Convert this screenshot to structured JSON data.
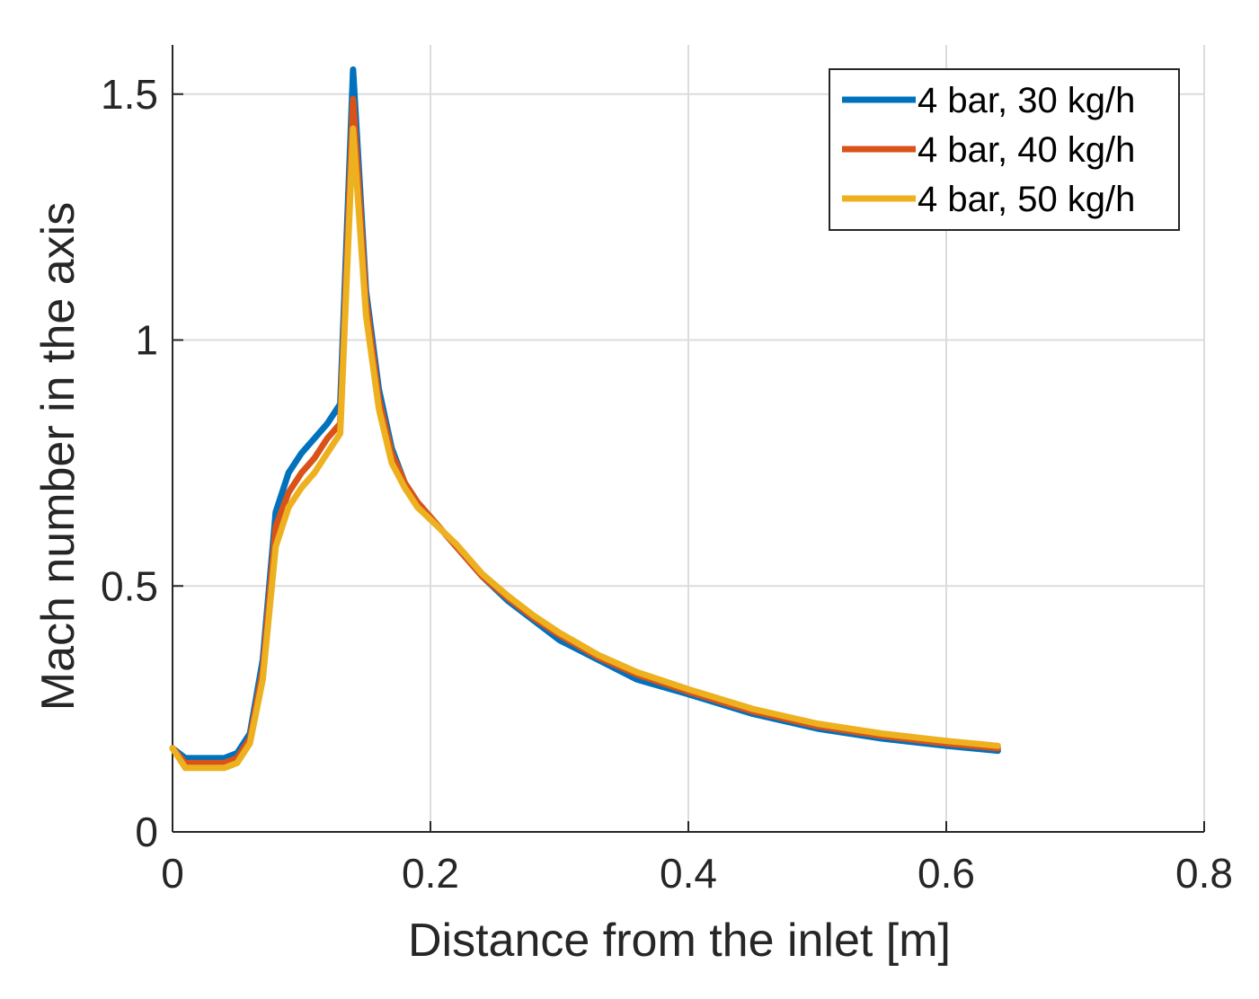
{
  "chart_data": {
    "type": "line",
    "title": "",
    "xlabel": "Distance from the inlet [m]",
    "ylabel": "Mach number in the axis",
    "xlim": [
      0,
      0.8
    ],
    "ylim": [
      0,
      1.6
    ],
    "xticks": [
      0,
      0.2,
      0.4,
      0.6,
      0.8
    ],
    "xtick_labels": [
      "0",
      "0.2",
      "0.4",
      "0.6",
      "0.8"
    ],
    "yticks": [
      0,
      0.5,
      1,
      1.5
    ],
    "ytick_labels": [
      "0",
      "0.5",
      "1",
      "1.5"
    ],
    "grid": true,
    "legend_position": "top-right",
    "series": [
      {
        "name": "4 bar, 30 kg/h",
        "color": "#0072BD",
        "points": [
          [
            0,
            0.17
          ],
          [
            0.01,
            0.15
          ],
          [
            0.02,
            0.15
          ],
          [
            0.03,
            0.15
          ],
          [
            0.04,
            0.15
          ],
          [
            0.05,
            0.16
          ],
          [
            0.06,
            0.2
          ],
          [
            0.07,
            0.35
          ],
          [
            0.08,
            0.65
          ],
          [
            0.09,
            0.73
          ],
          [
            0.1,
            0.77
          ],
          [
            0.11,
            0.8
          ],
          [
            0.12,
            0.83
          ],
          [
            0.13,
            0.87
          ],
          [
            0.14,
            1.55
          ],
          [
            0.15,
            1.1
          ],
          [
            0.16,
            0.9
          ],
          [
            0.17,
            0.78
          ],
          [
            0.18,
            0.71
          ],
          [
            0.19,
            0.67
          ],
          [
            0.2,
            0.64
          ],
          [
            0.22,
            0.58
          ],
          [
            0.24,
            0.52
          ],
          [
            0.26,
            0.47
          ],
          [
            0.28,
            0.43
          ],
          [
            0.3,
            0.39
          ],
          [
            0.33,
            0.35
          ],
          [
            0.36,
            0.31
          ],
          [
            0.4,
            0.28
          ],
          [
            0.45,
            0.24
          ],
          [
            0.5,
            0.21
          ],
          [
            0.55,
            0.19
          ],
          [
            0.6,
            0.175
          ],
          [
            0.64,
            0.165
          ]
        ]
      },
      {
        "name": "4 bar, 40 kg/h",
        "color": "#D95319",
        "points": [
          [
            0,
            0.17
          ],
          [
            0.01,
            0.14
          ],
          [
            0.02,
            0.14
          ],
          [
            0.03,
            0.14
          ],
          [
            0.04,
            0.14
          ],
          [
            0.05,
            0.15
          ],
          [
            0.06,
            0.19
          ],
          [
            0.07,
            0.33
          ],
          [
            0.08,
            0.62
          ],
          [
            0.09,
            0.69
          ],
          [
            0.1,
            0.73
          ],
          [
            0.11,
            0.76
          ],
          [
            0.12,
            0.8
          ],
          [
            0.13,
            0.83
          ],
          [
            0.14,
            1.49
          ],
          [
            0.15,
            1.08
          ],
          [
            0.16,
            0.88
          ],
          [
            0.17,
            0.77
          ],
          [
            0.18,
            0.71
          ],
          [
            0.19,
            0.67
          ],
          [
            0.2,
            0.64
          ],
          [
            0.22,
            0.58
          ],
          [
            0.24,
            0.52
          ],
          [
            0.26,
            0.475
          ],
          [
            0.28,
            0.435
          ],
          [
            0.3,
            0.4
          ],
          [
            0.33,
            0.355
          ],
          [
            0.36,
            0.32
          ],
          [
            0.4,
            0.285
          ],
          [
            0.45,
            0.245
          ],
          [
            0.5,
            0.215
          ],
          [
            0.55,
            0.195
          ],
          [
            0.6,
            0.18
          ],
          [
            0.64,
            0.17
          ]
        ]
      },
      {
        "name": "4 bar, 50 kg/h",
        "color": "#EDB120",
        "points": [
          [
            0,
            0.17
          ],
          [
            0.01,
            0.13
          ],
          [
            0.02,
            0.13
          ],
          [
            0.03,
            0.13
          ],
          [
            0.04,
            0.13
          ],
          [
            0.05,
            0.14
          ],
          [
            0.06,
            0.18
          ],
          [
            0.07,
            0.31
          ],
          [
            0.08,
            0.58
          ],
          [
            0.09,
            0.66
          ],
          [
            0.1,
            0.7
          ],
          [
            0.11,
            0.73
          ],
          [
            0.12,
            0.77
          ],
          [
            0.13,
            0.81
          ],
          [
            0.14,
            1.43
          ],
          [
            0.15,
            1.05
          ],
          [
            0.16,
            0.86
          ],
          [
            0.17,
            0.75
          ],
          [
            0.18,
            0.7
          ],
          [
            0.19,
            0.66
          ],
          [
            0.2,
            0.635
          ],
          [
            0.22,
            0.585
          ],
          [
            0.24,
            0.525
          ],
          [
            0.26,
            0.48
          ],
          [
            0.28,
            0.44
          ],
          [
            0.3,
            0.405
          ],
          [
            0.33,
            0.36
          ],
          [
            0.36,
            0.325
          ],
          [
            0.4,
            0.29
          ],
          [
            0.45,
            0.25
          ],
          [
            0.5,
            0.22
          ],
          [
            0.55,
            0.2
          ],
          [
            0.6,
            0.185
          ],
          [
            0.64,
            0.175
          ]
        ]
      }
    ]
  }
}
